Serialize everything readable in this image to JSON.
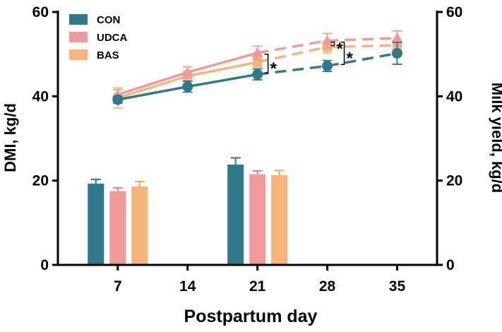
{
  "chart_data": {
    "type": "bar+line",
    "xlabel": "Postpartum day",
    "ylabel_left": "DMI, kg/d",
    "ylabel_right": "Milk yield, kg/d",
    "x_ticks": [
      7,
      14,
      21,
      28,
      35
    ],
    "ylim_left": [
      0,
      60
    ],
    "ylim_right": [
      0,
      60
    ],
    "yticks_left": [
      0,
      20,
      40,
      60
    ],
    "yticks_right": [
      0,
      20,
      40,
      60
    ],
    "xlim": [
      1,
      39
    ],
    "legend": [
      "CON",
      "UDCA",
      "BAS"
    ],
    "colors": {
      "CON": "#2e7a8c",
      "UDCA": "#f09a9b",
      "BAS": "#f7b57c"
    },
    "bars": {
      "axis": "left",
      "days": [
        7,
        21
      ],
      "series": [
        {
          "name": "CON",
          "values": [
            19.3,
            23.8
          ],
          "errors": [
            1.0,
            1.6
          ]
        },
        {
          "name": "UDCA",
          "values": [
            17.5,
            21.5
          ],
          "errors": [
            0.8,
            0.8
          ]
        },
        {
          "name": "BAS",
          "values": [
            18.6,
            21.3
          ],
          "errors": [
            1.2,
            1.1
          ]
        }
      ]
    },
    "lines": {
      "axis": "right",
      "x": [
        7,
        14,
        21,
        28,
        35
      ],
      "solid_until": 21,
      "series": [
        {
          "name": "CON",
          "marker": "circle",
          "values": [
            39.2,
            42.3,
            45.2,
            47.2,
            50.2
          ],
          "errors": [
            0.8,
            1.3,
            1.3,
            1.3,
            2.6
          ]
        },
        {
          "name": "UDCA",
          "marker": "triangle",
          "values": [
            40.4,
            45.7,
            50.3,
            53.2,
            53.8
          ],
          "errors": [
            1.2,
            1.3,
            1.6,
            1.7,
            1.7
          ]
        },
        {
          "name": "BAS",
          "marker": "square",
          "values": [
            39.6,
            44.8,
            48.1,
            51.7,
            52.1
          ],
          "errors": [
            2.4,
            1.3,
            1.2,
            1.4,
            1.2
          ]
        }
      ]
    },
    "significance": [
      {
        "day": 21,
        "label": "*",
        "from": "CON",
        "to": "UDCA"
      },
      {
        "day": 28,
        "label": "*",
        "from": "BAS",
        "to": "UDCA"
      },
      {
        "day": 28,
        "label": "*",
        "from": "CON",
        "to": "UDCA"
      }
    ]
  }
}
